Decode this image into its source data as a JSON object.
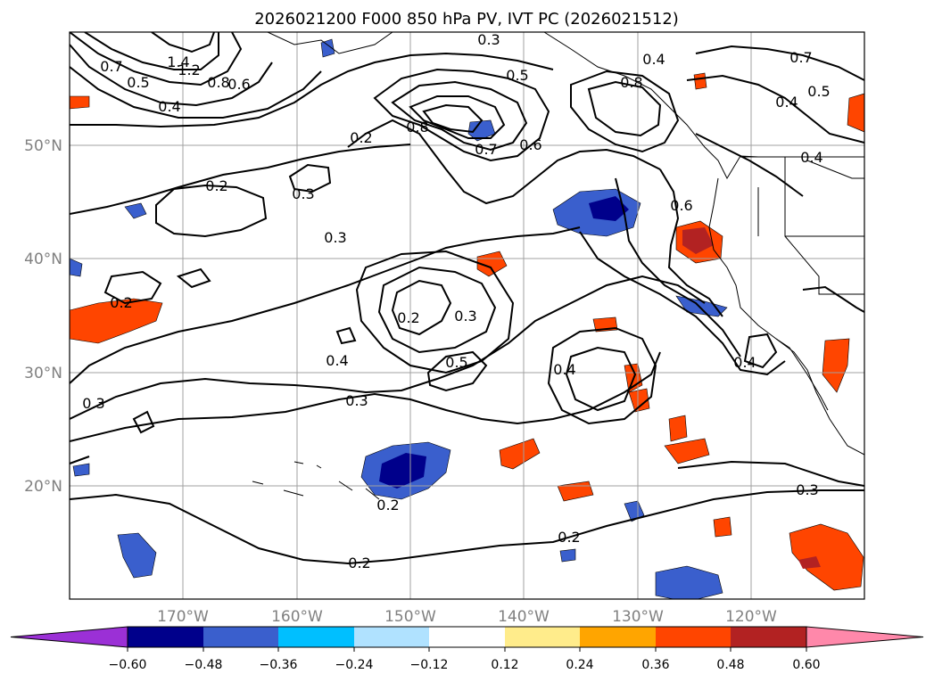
{
  "title": "2026021200 F000 850 hPa PV, IVT PC (2026021512)",
  "axes": {
    "lat_labels": [
      "50°N",
      "40°N",
      "30°N",
      "20°N"
    ],
    "lon_labels": [
      "170°W",
      "160°W",
      "150°W",
      "140°W",
      "130°W",
      "120°W"
    ]
  },
  "colorbar": {
    "ticks": [
      "−0.60",
      "−0.48",
      "−0.36",
      "−0.24",
      "−0.12",
      "0.12",
      "0.24",
      "0.36",
      "0.48",
      "0.60"
    ],
    "colors": [
      "#9b30d6",
      "#00008b",
      "#3a5fcd",
      "#00bfff",
      "#b0e2ff",
      "#ffffff",
      "#ffec8b",
      "#ffa500",
      "#ff4500",
      "#b22222",
      "#ff88aa"
    ]
  },
  "contour_labels": [
    "1.4",
    "1.2",
    "0.8",
    "0.6",
    "0.7",
    "0.5",
    "0.4",
    "0.3",
    "0.5",
    "0.4",
    "0.7",
    "0.8",
    "0.5",
    "0.4",
    "0.8",
    "0.7",
    "0.6",
    "0.2",
    "0.2",
    "0.3",
    "0.3",
    "0.6",
    "0.4",
    "0.2",
    "0.3",
    "0.5",
    "0.4",
    "0.3",
    "0.4",
    "0.4",
    "0.3",
    "0.2",
    "0.2",
    "0.2",
    "0.3",
    "0.2"
  ]
}
